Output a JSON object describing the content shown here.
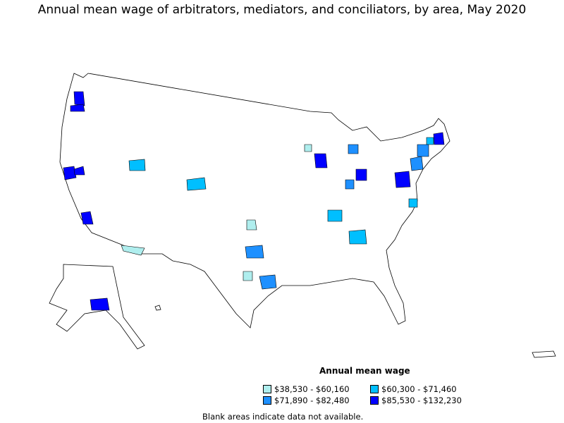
{
  "title": "Annual mean wage of arbitrators, mediators, and conciliators, by area, May 2020",
  "legend": {
    "title": "Annual mean wage",
    "items": [
      {
        "label": "$38,530 - $60,160",
        "color": "#AFEEEE"
      },
      {
        "label": "$60,300 - $71,460",
        "color": "#00BFFF"
      },
      {
        "label": "$71,890 - $82,480",
        "color": "#1E90FF"
      },
      {
        "label": "$85,530 - $132,230",
        "color": "#0000FF"
      }
    ]
  },
  "note": "Blank areas indicate data not available."
}
